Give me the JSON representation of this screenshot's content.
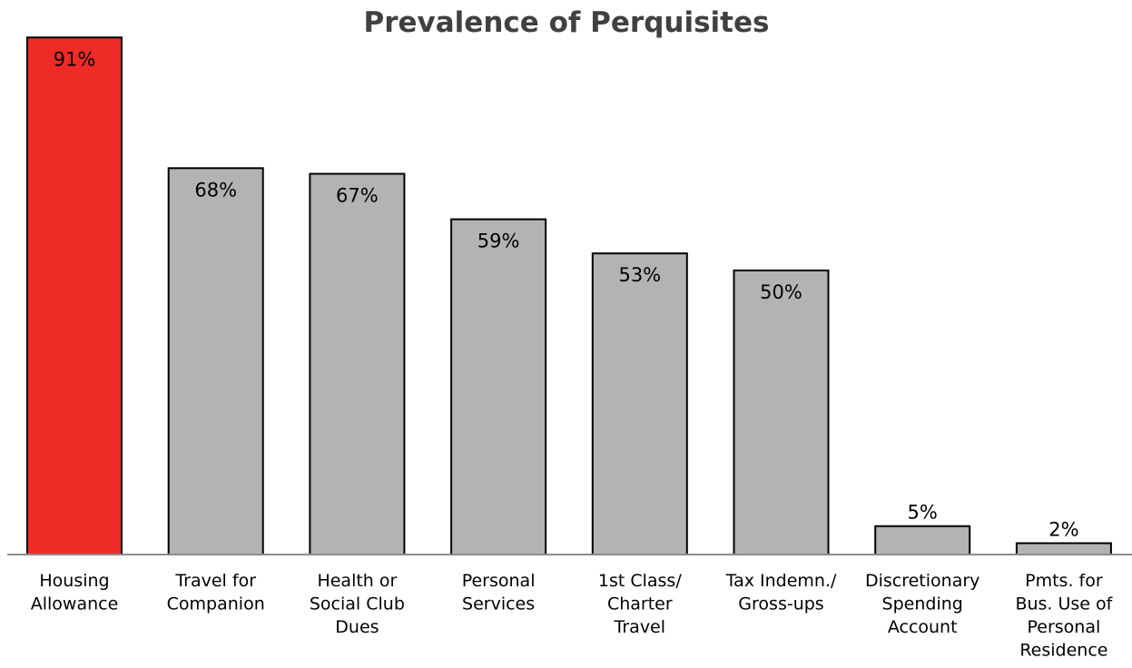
{
  "chart_data": {
    "type": "bar",
    "title": "Prevalence of Perquisites",
    "categories": [
      [
        "Housing",
        "Allowance"
      ],
      [
        "Travel for",
        "Companion"
      ],
      [
        "Health or",
        "Social Club",
        "Dues"
      ],
      [
        "Personal",
        "Services"
      ],
      [
        "1st Class/",
        "Charter",
        "Travel"
      ],
      [
        "Tax Indemn./",
        "Gross-ups"
      ],
      [
        "Discretionary",
        "Spending",
        "Account"
      ],
      [
        "Pmts. for",
        "Bus. Use of",
        "Personal",
        "Residence"
      ]
    ],
    "values": [
      91,
      68,
      67,
      59,
      53,
      50,
      5,
      2
    ],
    "value_labels": [
      "91%",
      "68%",
      "67%",
      "59%",
      "53%",
      "50%",
      "5%",
      "2%"
    ],
    "highlight_index": 0,
    "ylim": [
      0,
      92
    ],
    "grid": false,
    "legend": "none",
    "xlabel": "",
    "ylabel": ""
  },
  "colors": {
    "highlight": "#ee2b27",
    "bar": "#b3b3b3",
    "stroke": "#000000",
    "axis": "#8c8c8c",
    "title": "#404040",
    "label_on_highlight": "#ffffff"
  }
}
